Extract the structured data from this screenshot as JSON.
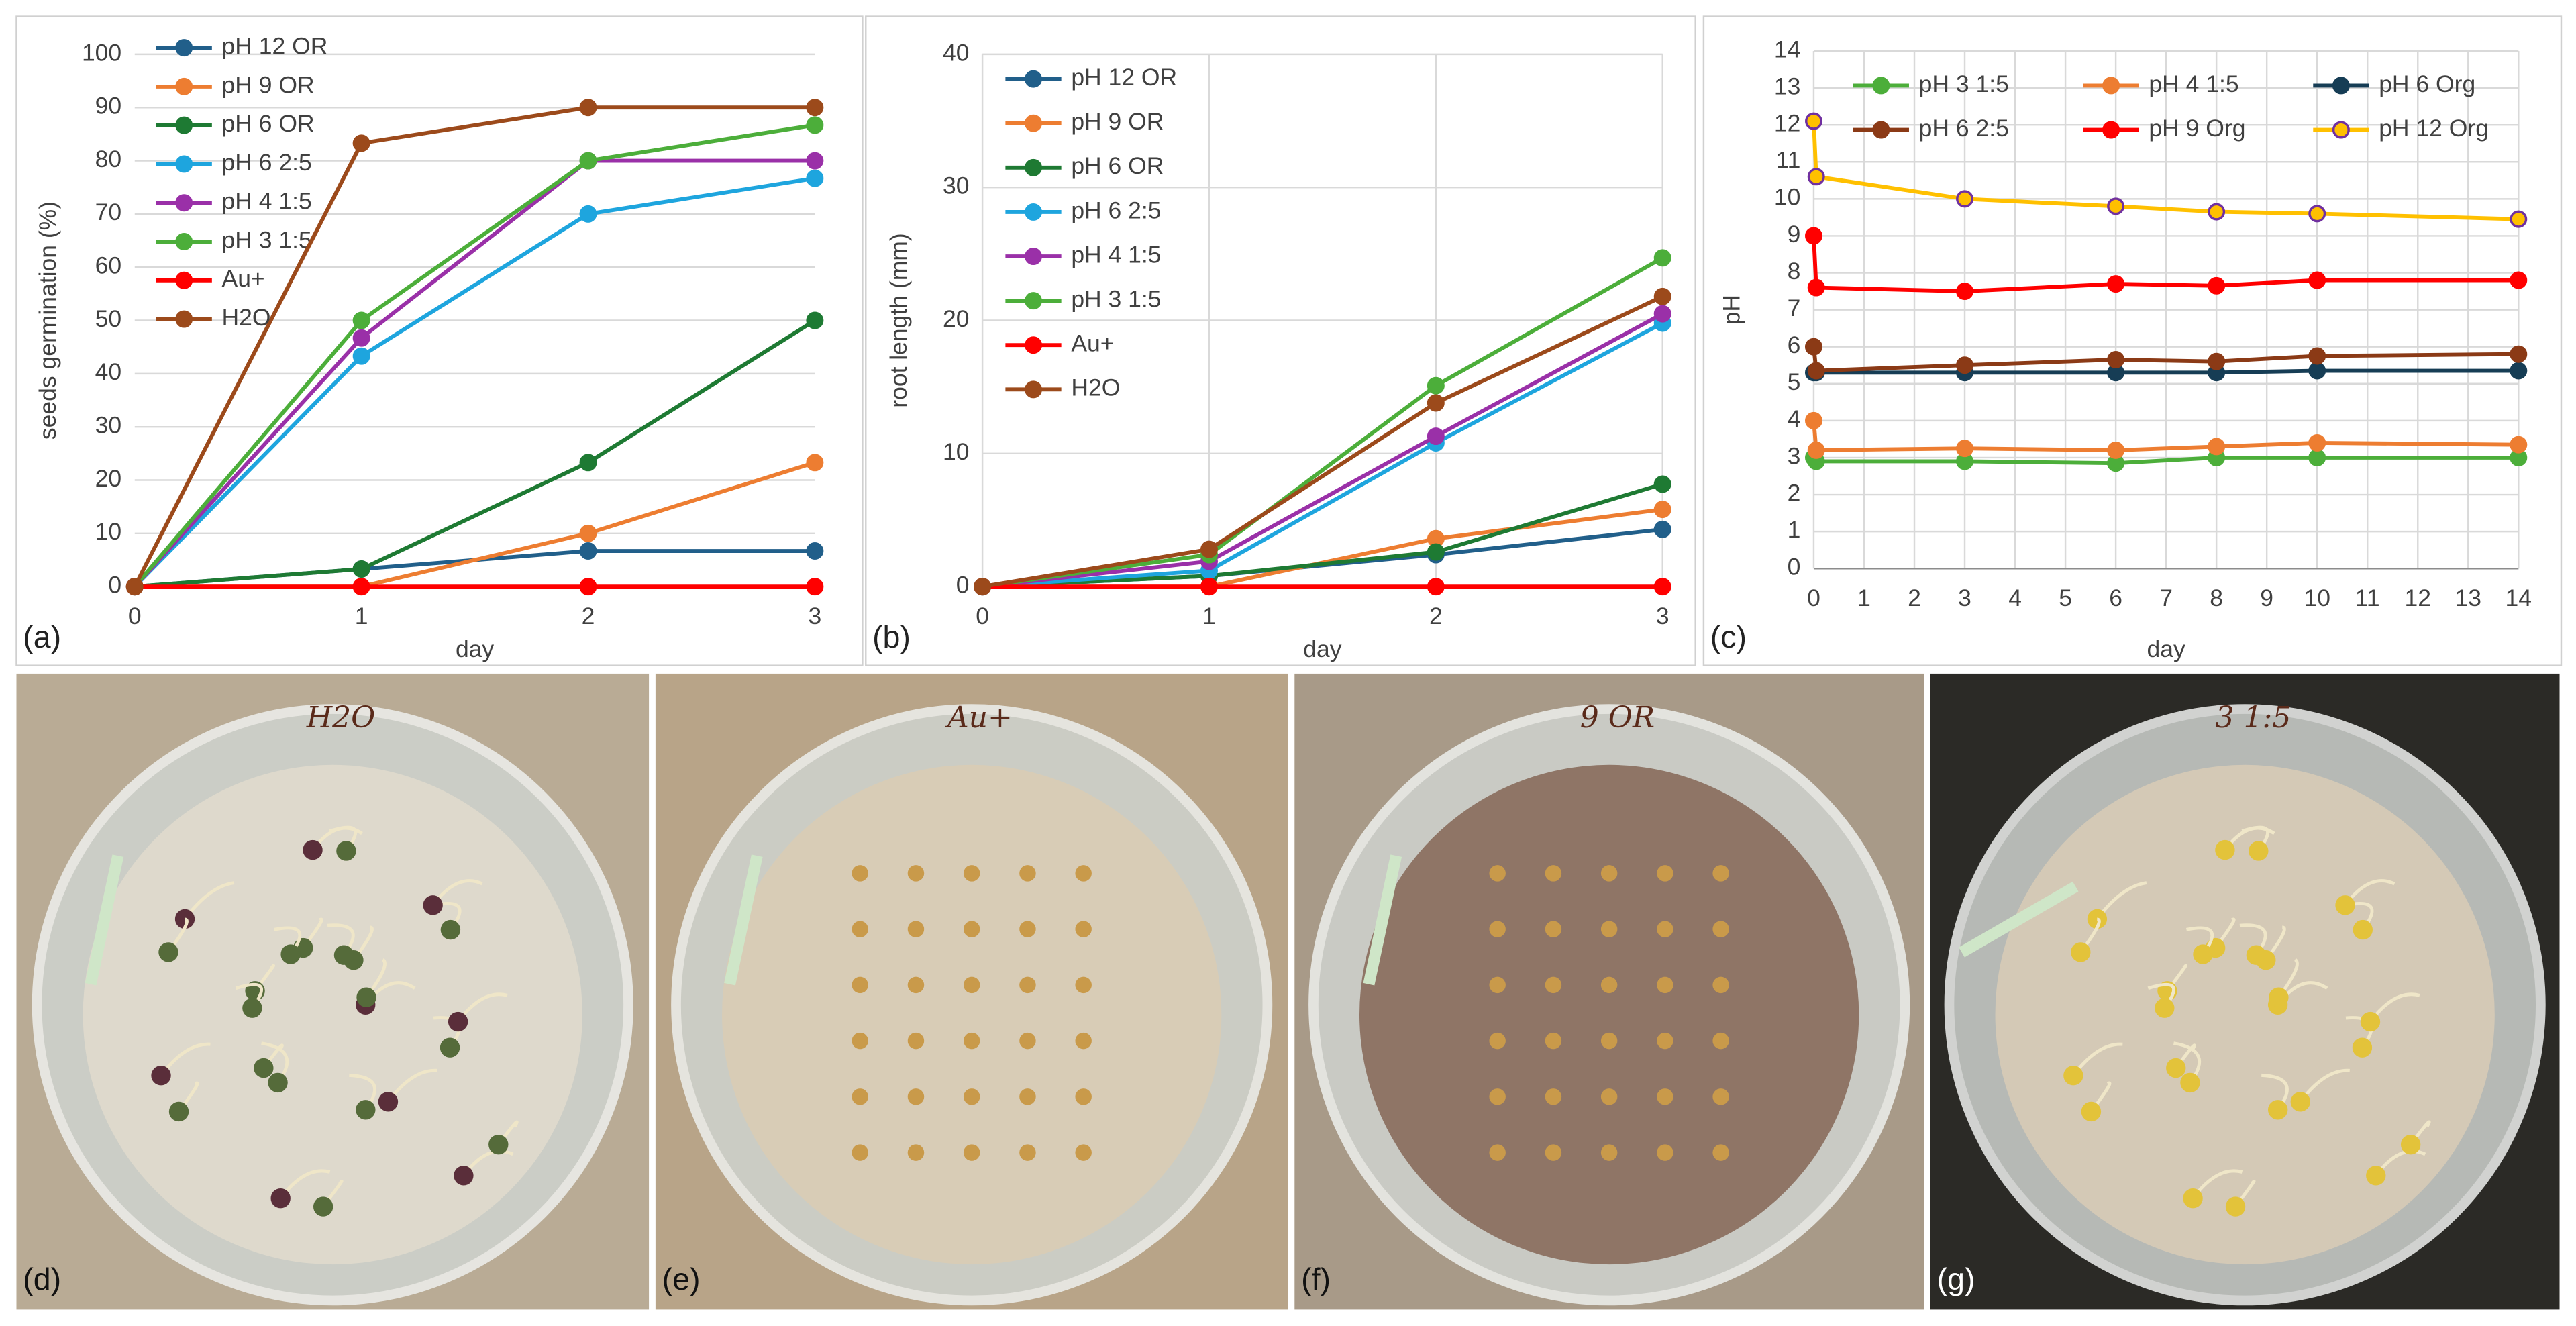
{
  "chart_data": [
    {
      "type": "line",
      "panel_label": "(a)",
      "xlabel": "day",
      "ylabel": "seeds germination (%)",
      "x": [
        0,
        1,
        2,
        3
      ],
      "xlim": [
        0,
        3
      ],
      "xticks": [
        0,
        1,
        2,
        3
      ],
      "ylim": [
        0,
        100
      ],
      "yticks": [
        0,
        10,
        20,
        30,
        40,
        50,
        60,
        70,
        80,
        90,
        100
      ],
      "grid": "y",
      "legend": "upper left",
      "series": [
        {
          "name": "pH 12 OR",
          "color": "#215f8a",
          "values": [
            0,
            3.3,
            6.7,
            6.7
          ]
        },
        {
          "name": "pH 9 OR",
          "color": "#ed7d31",
          "values": [
            0,
            0,
            10,
            23.3
          ]
        },
        {
          "name": "pH 6 OR",
          "color": "#1e7a33",
          "values": [
            0,
            3.3,
            23.3,
            50
          ]
        },
        {
          "name": "pH 6 2:5",
          "color": "#1ea5de",
          "values": [
            0,
            43.3,
            70,
            76.7
          ]
        },
        {
          "name": "pH 4 1:5",
          "color": "#9a30a8",
          "values": [
            0,
            46.7,
            80,
            80
          ]
        },
        {
          "name": "pH 3 1:5",
          "color": "#4cae3a",
          "values": [
            0,
            50,
            80,
            86.7
          ]
        },
        {
          "name": "Au+",
          "color": "#ff0000",
          "values": [
            0,
            0,
            0,
            0
          ]
        },
        {
          "name": "H2O",
          "color": "#9c4a1b",
          "values": [
            0,
            83.3,
            90,
            90
          ]
        }
      ]
    },
    {
      "type": "line",
      "panel_label": "(b)",
      "xlabel": "day",
      "ylabel": "root length (mm)",
      "x": [
        0,
        1,
        2,
        3
      ],
      "xlim": [
        0,
        3
      ],
      "xticks": [
        0,
        1,
        2,
        3
      ],
      "ylim": [
        0,
        40
      ],
      "yticks": [
        0,
        10,
        20,
        30,
        40
      ],
      "grid": "both",
      "legend": "upper left",
      "series": [
        {
          "name": "pH 12 OR",
          "color": "#215f8a",
          "values": [
            0,
            0.8,
            2.4,
            4.3
          ]
        },
        {
          "name": "pH 9 OR",
          "color": "#ed7d31",
          "values": [
            0,
            0,
            3.6,
            5.8
          ]
        },
        {
          "name": "pH 6 OR",
          "color": "#1e7a33",
          "values": [
            0,
            0.8,
            2.6,
            7.7
          ]
        },
        {
          "name": "pH 6 2:5",
          "color": "#1ea5de",
          "values": [
            0,
            1.2,
            10.8,
            19.8
          ]
        },
        {
          "name": "pH 4 1:5",
          "color": "#9a30a8",
          "values": [
            0,
            1.9,
            11.3,
            20.5
          ]
        },
        {
          "name": "pH 3 1:5",
          "color": "#4cae3a",
          "values": [
            0,
            2.4,
            15.1,
            24.7
          ]
        },
        {
          "name": "Au+",
          "color": "#ff0000",
          "values": [
            0,
            0,
            0,
            0
          ]
        },
        {
          "name": "H2O",
          "color": "#9c4a1b",
          "values": [
            0,
            2.8,
            13.8,
            21.8
          ]
        }
      ]
    },
    {
      "type": "line",
      "panel_label": "(c)",
      "xlabel": "day",
      "ylabel": "pH",
      "x": [
        0,
        0.05,
        3,
        6,
        8,
        10,
        14
      ],
      "xlim": [
        0,
        14
      ],
      "xticks": [
        0,
        1,
        2,
        3,
        4,
        5,
        6,
        7,
        8,
        9,
        10,
        11,
        12,
        13,
        14
      ],
      "ylim": [
        0,
        14
      ],
      "yticks": [
        0,
        1,
        2,
        3,
        4,
        5,
        6,
        7,
        8,
        9,
        10,
        11,
        12,
        13,
        14
      ],
      "grid": "both",
      "legend": "upper center",
      "series": [
        {
          "name": "pH 3 1:5",
          "color": "#4cae3a",
          "values": [
            3.0,
            2.9,
            2.9,
            2.85,
            3.0,
            3.0,
            3.0
          ]
        },
        {
          "name": "pH 4 1:5",
          "color": "#ed7d31",
          "values": [
            4.0,
            3.2,
            3.25,
            3.2,
            3.3,
            3.4,
            3.35
          ]
        },
        {
          "name": "pH 6 Org",
          "color": "#163d55",
          "values": [
            5.3,
            5.3,
            5.3,
            5.3,
            5.3,
            5.35,
            5.35
          ]
        },
        {
          "name": "pH 6 2:5",
          "color": "#8b3a16",
          "values": [
            6.0,
            5.35,
            5.5,
            5.65,
            5.6,
            5.75,
            5.8
          ]
        },
        {
          "name": "pH 9 Org",
          "color": "#ff0000",
          "values": [
            9.0,
            7.6,
            7.5,
            7.7,
            7.65,
            7.8,
            7.8
          ]
        },
        {
          "name": "pH 12 Org",
          "color": "#ffc000",
          "marker_edge": "#7030a0",
          "values": [
            12.1,
            10.6,
            10.0,
            9.8,
            9.65,
            9.6,
            9.45
          ]
        }
      ]
    }
  ],
  "photos": [
    {
      "label": "(d)",
      "marking": "H2O"
    },
    {
      "label": "(e)",
      "marking": "Au+"
    },
    {
      "label": "(f)",
      "marking": "9 OR"
    },
    {
      "label": "(g)",
      "marking": "3 1:5"
    }
  ]
}
